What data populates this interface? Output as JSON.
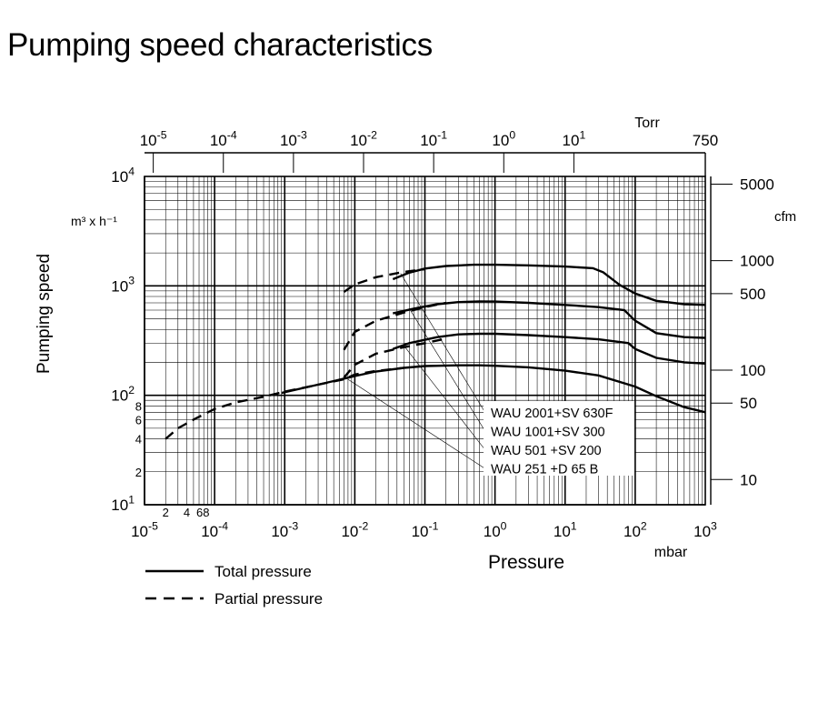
{
  "title": "Pumping speed characteristics",
  "chart_data": {
    "type": "line",
    "x_scale": "log",
    "y_scale": "log",
    "xlim": [
      1e-05,
      1000
    ],
    "ylim": [
      10,
      10000
    ],
    "xlabel": "Pressure",
    "x_unit": "mbar",
    "ylabel": "Pumping speed",
    "y_unit": "m³ x h⁻¹",
    "x_ticks_major": [
      {
        "value": 1e-05,
        "base": "10",
        "exp": "-5"
      },
      {
        "value": 0.0001,
        "base": "10",
        "exp": "-4"
      },
      {
        "value": 0.001,
        "base": "10",
        "exp": "-3"
      },
      {
        "value": 0.01,
        "base": "10",
        "exp": "-2"
      },
      {
        "value": 0.1,
        "base": "10",
        "exp": "-1"
      },
      {
        "value": 1,
        "base": "10",
        "exp": "0"
      },
      {
        "value": 10,
        "base": "10",
        "exp": "1"
      },
      {
        "value": 100,
        "base": "10",
        "exp": "2"
      },
      {
        "value": 1000,
        "base": "10",
        "exp": "3"
      }
    ],
    "x_ticks_minor_labeled": [
      {
        "value": 2e-05,
        "label": "2"
      },
      {
        "value": 4e-05,
        "label": "4"
      },
      {
        "value": 6.8e-05,
        "label": "68"
      }
    ],
    "y_ticks_major": [
      {
        "value": 10,
        "base": "10",
        "exp": "1"
      },
      {
        "value": 100,
        "base": "10",
        "exp": "2"
      },
      {
        "value": 1000,
        "base": "10",
        "exp": "3"
      },
      {
        "value": 10000,
        "base": "10",
        "exp": "4"
      }
    ],
    "y_ticks_minor_labeled": [
      {
        "value": 20,
        "label": "2"
      },
      {
        "value": 40,
        "label": "4"
      },
      {
        "value": 60,
        "label": "6"
      },
      {
        "value": 80,
        "label": "8"
      }
    ],
    "top_axis": {
      "unit": "Torr",
      "ticks": [
        {
          "torr": 1e-05,
          "base": "10",
          "exp": "-5"
        },
        {
          "torr": 0.0001,
          "base": "10",
          "exp": "-4"
        },
        {
          "torr": 0.001,
          "base": "10",
          "exp": "-3"
        },
        {
          "torr": 0.01,
          "base": "10",
          "exp": "-2"
        },
        {
          "torr": 0.1,
          "base": "10",
          "exp": "-1"
        },
        {
          "torr": 1,
          "base": "10",
          "exp": "0"
        },
        {
          "torr": 10,
          "base": "10",
          "exp": "1"
        },
        {
          "torr": 750,
          "base": "750",
          "exp": ""
        }
      ]
    },
    "right_axis": {
      "unit": "cfm",
      "ticks": [
        {
          "label": "5000",
          "cfm": 5000
        },
        {
          "label": "1000",
          "cfm": 1000
        },
        {
          "label": "500",
          "cfm": 500
        },
        {
          "label": "100",
          "cfm": 100
        },
        {
          "label": "50",
          "cfm": 50
        },
        {
          "label": "10",
          "cfm": 10
        }
      ]
    },
    "series": [
      {
        "name": "WAU 2001+SV 630F",
        "total": [
          [
            0.035,
            1150
          ],
          [
            0.06,
            1320
          ],
          [
            0.1,
            1440
          ],
          [
            0.2,
            1520
          ],
          [
            0.5,
            1560
          ],
          [
            1,
            1560
          ],
          [
            3,
            1540
          ],
          [
            10,
            1500
          ],
          [
            25,
            1450
          ],
          [
            35,
            1330
          ],
          [
            60,
            1020
          ],
          [
            100,
            850
          ],
          [
            200,
            730
          ],
          [
            500,
            680
          ],
          [
            1000,
            670
          ]
        ],
        "partial": [
          [
            0.007,
            880
          ],
          [
            0.01,
            1030
          ],
          [
            0.02,
            1200
          ],
          [
            0.05,
            1340
          ],
          [
            0.1,
            1420
          ]
        ]
      },
      {
        "name": "WAU 1001+SV 300",
        "total": [
          [
            0.035,
            560
          ],
          [
            0.07,
            620
          ],
          [
            0.15,
            680
          ],
          [
            0.3,
            710
          ],
          [
            0.6,
            720
          ],
          [
            1,
            718
          ],
          [
            3,
            700
          ],
          [
            10,
            670
          ],
          [
            30,
            640
          ],
          [
            70,
            600
          ],
          [
            100,
            480
          ],
          [
            200,
            370
          ],
          [
            500,
            340
          ],
          [
            1000,
            335
          ]
        ],
        "partial": [
          [
            0.007,
            260
          ],
          [
            0.01,
            380
          ],
          [
            0.02,
            480
          ],
          [
            0.05,
            570
          ],
          [
            0.1,
            640
          ],
          [
            0.2,
            700
          ]
        ]
      },
      {
        "name": "WAU 501  +SV 200",
        "total": [
          [
            0.035,
            265
          ],
          [
            0.06,
            300
          ],
          [
            0.15,
            340
          ],
          [
            0.3,
            360
          ],
          [
            0.6,
            365
          ],
          [
            1,
            365
          ],
          [
            3,
            355
          ],
          [
            10,
            340
          ],
          [
            30,
            325
          ],
          [
            80,
            300
          ],
          [
            100,
            265
          ],
          [
            200,
            220
          ],
          [
            500,
            200
          ],
          [
            1000,
            195
          ]
        ],
        "partial": [
          [
            0.007,
            145
          ],
          [
            0.01,
            190
          ],
          [
            0.02,
            240
          ],
          [
            0.05,
            275
          ],
          [
            0.1,
            300
          ],
          [
            0.2,
            330
          ]
        ]
      },
      {
        "name": "WAU 251  +D 65 B",
        "total": [
          [
            0.0009,
            105
          ],
          [
            0.002,
            118
          ],
          [
            0.005,
            135
          ],
          [
            0.01,
            150
          ],
          [
            0.02,
            165
          ],
          [
            0.05,
            178
          ],
          [
            0.1,
            185
          ],
          [
            0.3,
            188
          ],
          [
            0.6,
            188
          ],
          [
            1,
            186
          ],
          [
            3,
            180
          ],
          [
            10,
            168
          ],
          [
            30,
            152
          ],
          [
            100,
            120
          ],
          [
            200,
            98
          ],
          [
            500,
            78
          ],
          [
            1000,
            70
          ]
        ],
        "partial": [
          [
            2e-05,
            40
          ],
          [
            3e-05,
            50
          ],
          [
            5e-05,
            60
          ],
          [
            0.0001,
            75
          ],
          [
            0.0002,
            86
          ],
          [
            0.0005,
            97
          ],
          [
            0.001,
            108
          ],
          [
            0.003,
            125
          ],
          [
            0.007,
            140
          ],
          [
            0.01,
            155
          ],
          [
            0.02,
            167
          ],
          [
            0.05,
            178
          ]
        ]
      }
    ],
    "legend": [
      {
        "style": "solid",
        "label": "Total pressure"
      },
      {
        "style": "dashed",
        "label": "Partial pressure"
      }
    ]
  }
}
